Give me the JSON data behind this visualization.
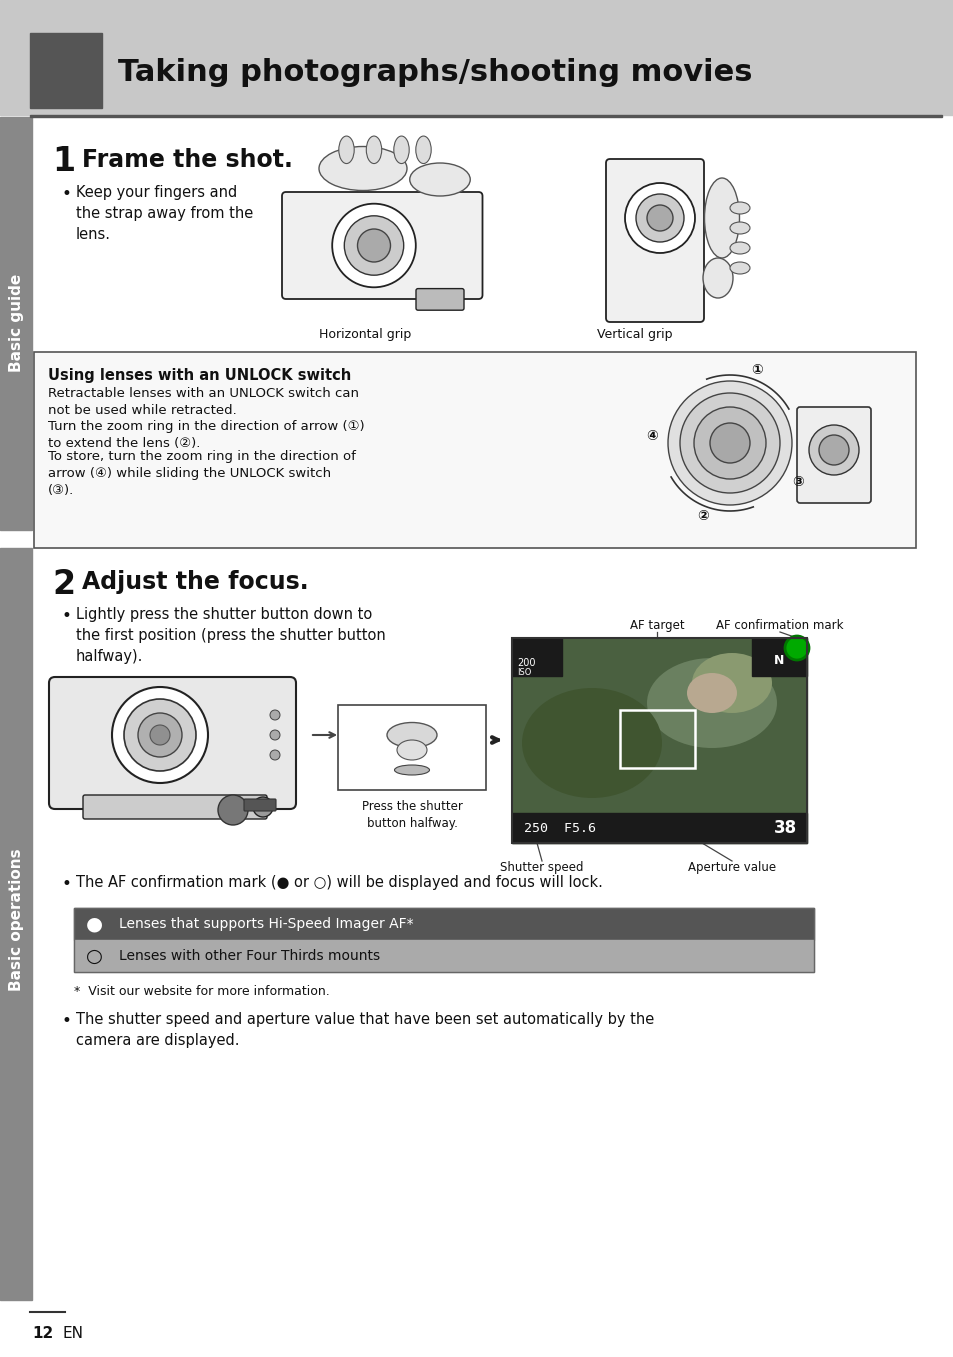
{
  "page_bg": "#ffffff",
  "header_bg": "#c8c8c8",
  "header_dark_rect": "#555555",
  "header_title": "Taking photographs/shooting movies",
  "header_title_size": 22,
  "sidebar_left_bg": "#888888",
  "sidebar_text1": "Basic guide",
  "sidebar_text2": "Basic operations",
  "section1_number": "1",
  "section1_title": "Frame the shot.",
  "section1_bullet": "Keep your fingers and\nthe strap away from the\nlens.",
  "label_horiz": "Horizontal grip",
  "label_vert": "Vertical grip",
  "unlock_box_title": "Using lenses with an UNLOCK switch",
  "unlock_text1": "Retractable lenses with an UNLOCK switch can\nnot be used while retracted.",
  "unlock_text2": "Turn the zoom ring in the direction of arrow (①)\nto extend the lens (②).",
  "unlock_text3": "To store, turn the zoom ring in the direction of\narrow (④) while sliding the UNLOCK switch\n(③).",
  "section2_number": "2",
  "section2_title": "Adjust the focus.",
  "section2_bullet": "Lightly press the shutter button down to\nthe first position (press the shutter button\nhalfway).",
  "label_shutter": "Press the shutter\nbutton halfway.",
  "label_af_target": "AF target",
  "label_af_confirm": "AF confirmation mark",
  "label_shutter_speed": "Shutter speed",
  "label_aperture": "Aperture value",
  "af_confirm_text": "The AF confirmation mark (● or ○) will be displayed and focus will lock.",
  "table_row1_icon": "●",
  "table_row1_text": "Lenses that supports Hi-Speed Imager AF*",
  "table_row2_icon": "○",
  "table_row2_text": "Lenses with other Four Thirds mounts",
  "footnote": "*  Visit our website for more information.",
  "bullet3": "The shutter speed and aperture value that have been set automatically by the\ncamera are displayed.",
  "page_number": "12",
  "page_lang": "EN",
  "box_border": "#333333",
  "table_bg1": "#555555",
  "table_bg2": "#aaaaaa"
}
